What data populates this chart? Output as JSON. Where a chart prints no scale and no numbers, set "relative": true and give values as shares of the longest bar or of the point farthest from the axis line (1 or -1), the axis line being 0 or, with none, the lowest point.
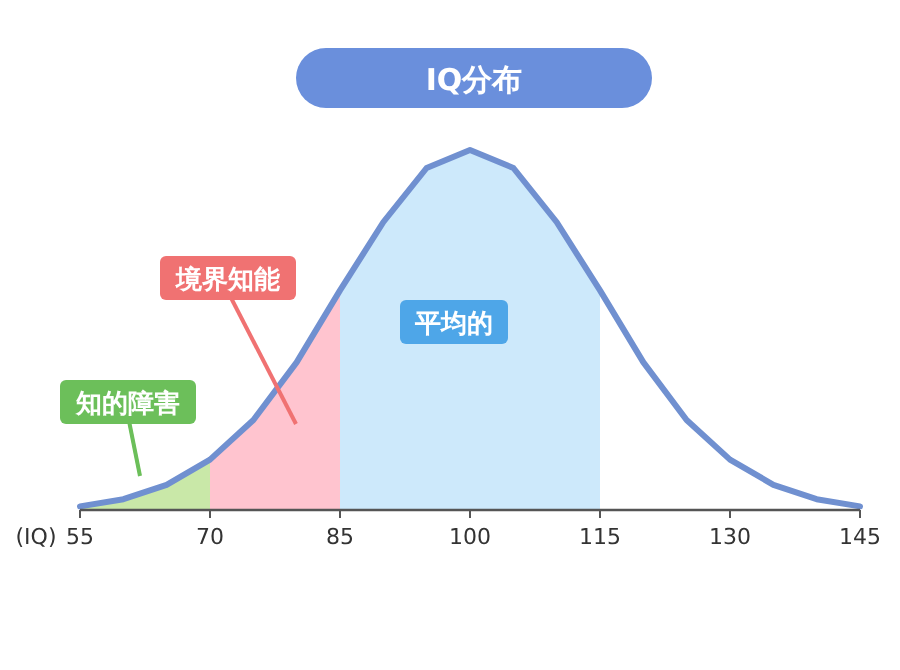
{
  "chart_data": {
    "type": "line",
    "title": "IQ分布",
    "xlabel": "(IQ)",
    "relative": true,
    "x": [
      55,
      60,
      65,
      70,
      75,
      80,
      85,
      90,
      95,
      100,
      105,
      110,
      115,
      120,
      125,
      130,
      135,
      140,
      145
    ],
    "series": [
      {
        "color": "#7090d0",
        "values": [
          0.01,
          0.03,
          0.07,
          0.14,
          0.25,
          0.41,
          0.61,
          0.8,
          0.95,
          1,
          0.95,
          0.8,
          0.61,
          0.41,
          0.25,
          0.14,
          0.07,
          0.03,
          0.01
        ]
      }
    ],
    "xlim": [
      55,
      145
    ],
    "xticks": [
      55,
      70,
      85,
      100,
      115,
      130,
      145
    ],
    "bands": [
      {
        "axis": "x",
        "from": 55,
        "to": 70,
        "label": "知的障害",
        "color": "#c9e8a8"
      },
      {
        "axis": "x",
        "from": 70,
        "to": 85,
        "label": "境界知能",
        "color": "#ffc4cf"
      },
      {
        "axis": "x",
        "from": 85,
        "to": 115,
        "label": "平均的",
        "color": "#cde9fb"
      }
    ],
    "grid": false,
    "marker": "none",
    "line_style": "solid"
  }
}
